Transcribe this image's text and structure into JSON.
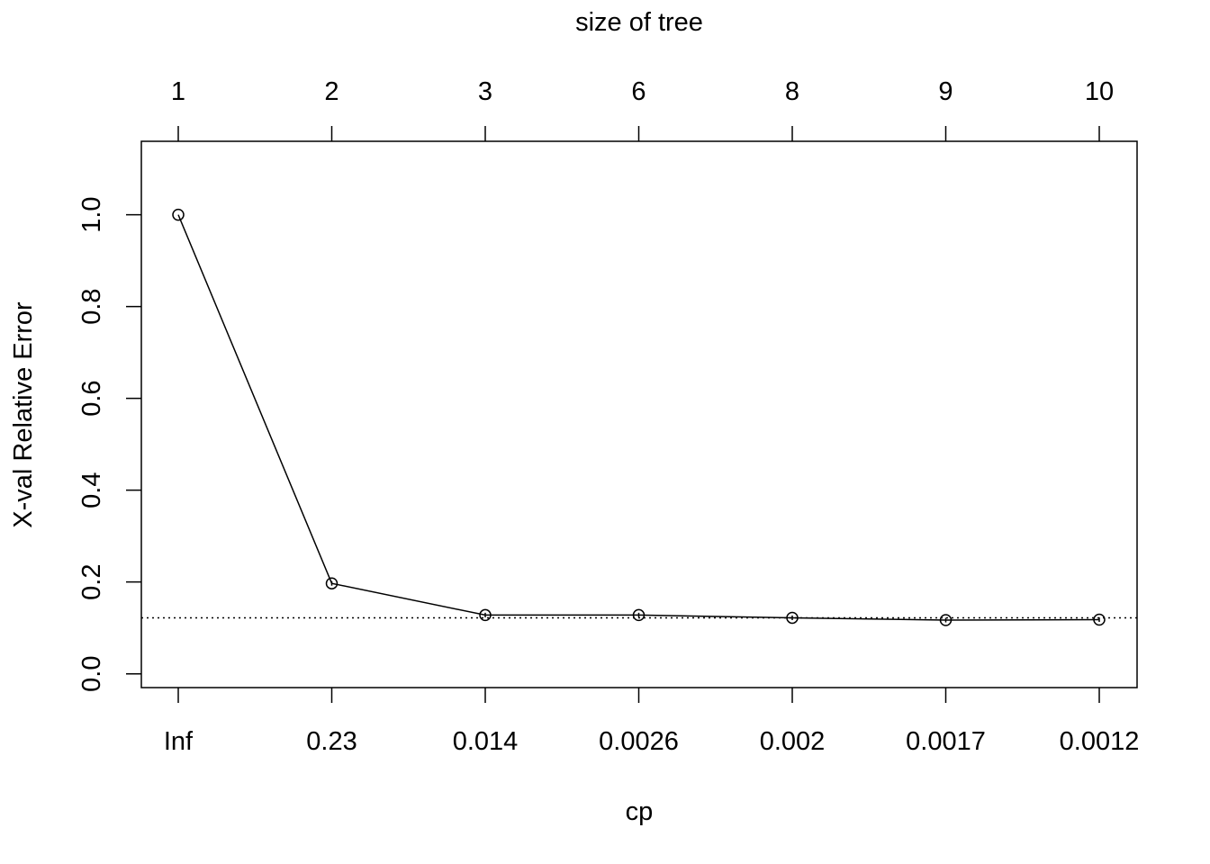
{
  "chart_data": {
    "type": "line",
    "top_axis_label": "size of tree",
    "top_ticks": [
      "1",
      "2",
      "3",
      "6",
      "8",
      "9",
      "10"
    ],
    "xlabel": "cp",
    "x_ticks": [
      "Inf",
      "0.23",
      "0.014",
      "0.0026",
      "0.002",
      "0.0017",
      "0.0012"
    ],
    "ylabel": "X-val Relative Error",
    "y_ticks": [
      "0.0",
      "0.2",
      "0.4",
      "0.6",
      "0.8",
      "1.0"
    ],
    "ylim": [
      -0.03,
      1.16
    ],
    "y_tick_values": [
      0.0,
      0.2,
      0.4,
      0.6,
      0.8,
      1.0
    ],
    "values": [
      1.0,
      0.197,
      0.128,
      0.128,
      0.122,
      0.117,
      0.118
    ],
    "error_half_width": [
      0.0,
      0.005,
      0.005,
      0.005,
      0.005,
      0.005,
      0.005
    ],
    "reference_line": 0.122,
    "grid": false,
    "marker": "open-circle"
  }
}
